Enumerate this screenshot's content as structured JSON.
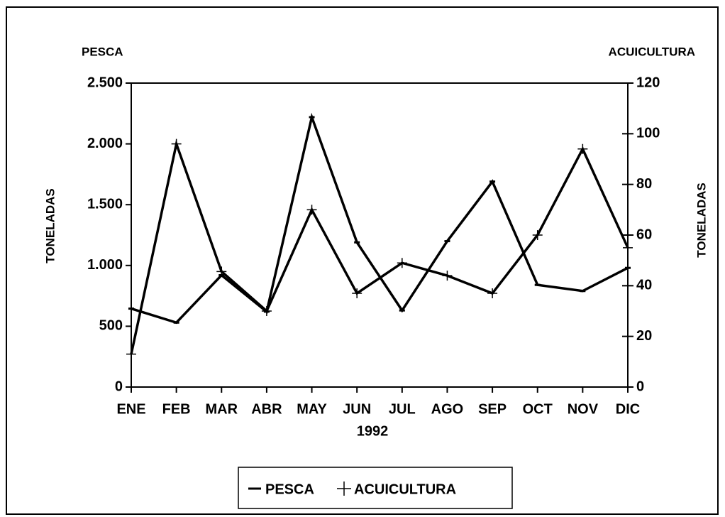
{
  "chart_data": {
    "type": "line",
    "y_title_left": "PESCA",
    "y_title_right": "ACUICULTURA",
    "y_axis_label": "TONELADAS",
    "y2_axis_label": "TONELADAS",
    "x_axis_label": "1992",
    "categories": [
      "ENE",
      "FEB",
      "MAR",
      "ABR",
      "MAY",
      "JUN",
      "JUL",
      "AGO",
      "SEP",
      "OCT",
      "NOV",
      "DIC"
    ],
    "series": [
      {
        "name": "PESCA",
        "color": "#000000",
        "marker": "-",
        "values": [
          645,
          530,
          920,
          620,
          2220,
          1190,
          630,
          1200,
          1690,
          840,
          790,
          980
        ]
      },
      {
        "name": "ACUICULTURA",
        "color": "#000000",
        "marker": "+",
        "axis": "y2",
        "values": [
          13,
          96,
          45.6,
          30,
          70,
          37,
          49,
          44,
          37,
          60,
          94,
          55
        ]
      }
    ],
    "ylim": [
      0,
      2500
    ],
    "yticks": [
      0,
      500,
      {
        "value": 1000,
        "label": "1.000"
      },
      {
        "value": 1500,
        "label": "1.500"
      },
      {
        "value": 2000,
        "label": "2.000"
      },
      {
        "value": 2500,
        "label": "2.500"
      }
    ],
    "y2lim": [
      0,
      120
    ],
    "y2ticks": [
      0,
      20,
      40,
      60,
      80,
      100,
      120
    ],
    "grid": false
  }
}
